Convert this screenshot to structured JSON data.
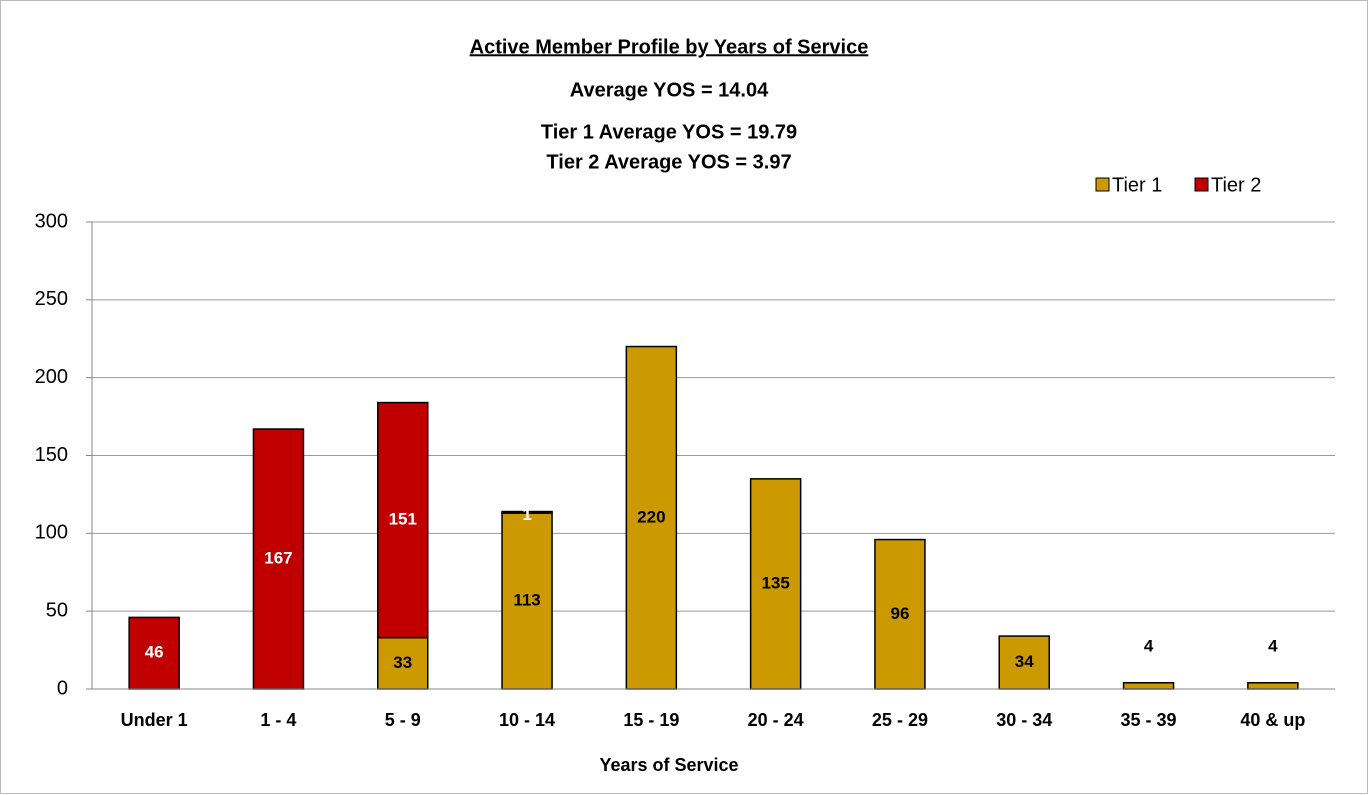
{
  "chart_data": {
    "type": "stacked_bar",
    "title": "Active Member Profile by Years of Service",
    "subtitles": [
      "Average YOS = 14.04",
      "Tier 1 Average YOS = 19.79",
      "Tier 2 Average YOS = 3.97"
    ],
    "x_label": "Years of Service",
    "categories": [
      "Under 1",
      "1 - 4",
      "5 - 9",
      "10 - 14",
      "15 - 19",
      "20 - 24",
      "25 - 29",
      "30 - 34",
      "35 - 39",
      "40 & up"
    ],
    "series": [
      {
        "name": "Tier 1",
        "color": "#CC9900",
        "label_color": "#000000",
        "values": [
          null,
          null,
          33,
          113,
          220,
          135,
          96,
          34,
          4,
          4
        ]
      },
      {
        "name": "Tier 2",
        "color": "#C00000",
        "label_color": "#FFFFFF",
        "values": [
          46,
          167,
          151,
          1,
          null,
          null,
          null,
          null,
          null,
          null
        ]
      }
    ],
    "ylim": [
      0,
      300
    ],
    "yticks": [
      0,
      50,
      100,
      150,
      200,
      250,
      300
    ],
    "grid": true,
    "legend": "top-right"
  }
}
